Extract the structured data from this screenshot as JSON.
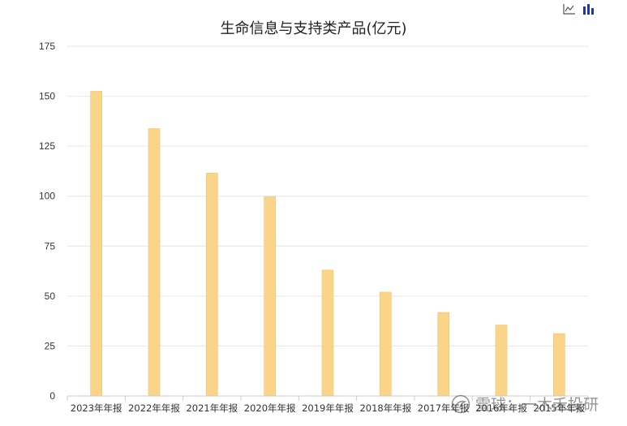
{
  "toolbar": {
    "line_icon": "line-chart-icon",
    "bar_icon": "bar-chart-icon"
  },
  "colors": {
    "bar_fill": "#fad589",
    "bar_stroke": "#f5c56a",
    "grid": "#e6e6e6",
    "axis": "#cccccc",
    "bar_icon_color": "#1f3a93"
  },
  "watermark": {
    "text": "雪球：一木禾投研",
    "icon": "snowball-logo-icon"
  },
  "chart_data": {
    "type": "bar",
    "title": "生命信息与支持类产品(亿元)",
    "xlabel": "",
    "ylabel": "",
    "categories": [
      "2023年年报",
      "2022年年报",
      "2021年年报",
      "2020年年报",
      "2019年年报",
      "2018年年报",
      "2017年年报",
      "2016年年报",
      "2015年年报"
    ],
    "values": [
      152.5,
      133.8,
      111.5,
      99.7,
      63.0,
      52.0,
      41.8,
      35.5,
      31.2
    ],
    "ylim": [
      0,
      175
    ],
    "yticks": [
      0,
      25,
      50,
      75,
      100,
      125,
      150,
      175
    ],
    "grid": true,
    "legend": "none"
  }
}
